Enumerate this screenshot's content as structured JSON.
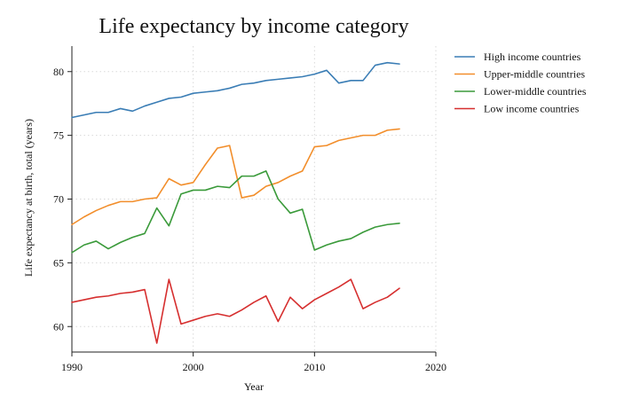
{
  "chart_data": {
    "type": "line",
    "title": "Life expectancy by income category",
    "xlabel": "Year",
    "ylabel": "Life expectancy at birth, total (years)",
    "xlim": [
      1990,
      2020
    ],
    "ylim": [
      58,
      82
    ],
    "xticks": [
      1990,
      2000,
      2010,
      2020
    ],
    "yticks": [
      60,
      65,
      70,
      75,
      80
    ],
    "grid": true,
    "legend_position": "right",
    "x": [
      1990,
      1991,
      1992,
      1993,
      1994,
      1995,
      1996,
      1997,
      1998,
      1999,
      2000,
      2001,
      2002,
      2003,
      2004,
      2005,
      2006,
      2007,
      2008,
      2009,
      2010,
      2011,
      2012,
      2013,
      2014,
      2015,
      2016,
      2017
    ],
    "series": [
      {
        "name": "High income countries",
        "color": "#3a7db5",
        "values": [
          76.4,
          76.6,
          76.8,
          76.8,
          77.1,
          76.9,
          77.3,
          77.6,
          77.9,
          78.0,
          78.3,
          78.4,
          78.5,
          78.7,
          79.0,
          79.1,
          79.3,
          79.4,
          79.5,
          79.6,
          79.8,
          80.1,
          79.1,
          79.3,
          79.3,
          80.5,
          80.7,
          80.6
        ]
      },
      {
        "name": "Upper-middle countries",
        "color": "#f28e2b",
        "values": [
          68.0,
          68.6,
          69.1,
          69.5,
          69.8,
          69.8,
          70.0,
          70.1,
          71.6,
          71.1,
          71.3,
          72.7,
          74.0,
          74.2,
          70.1,
          70.3,
          71.0,
          71.3,
          71.8,
          72.2,
          74.1,
          74.2,
          74.6,
          74.8,
          75.0,
          75.0,
          75.4,
          75.5
        ]
      },
      {
        "name": "Lower-middle countries",
        "color": "#3a9a3a",
        "values": [
          65.8,
          66.4,
          66.7,
          66.1,
          66.6,
          67.0,
          67.3,
          69.3,
          67.9,
          70.4,
          70.7,
          70.7,
          71.0,
          70.9,
          71.8,
          71.8,
          72.2,
          70.0,
          68.9,
          69.2,
          66.0,
          66.4,
          66.7,
          66.9,
          67.4,
          67.8,
          68.0,
          68.1
        ]
      },
      {
        "name": "Low income countries",
        "color": "#d62f2f",
        "values": [
          61.9,
          62.1,
          62.3,
          62.4,
          62.6,
          62.7,
          62.9,
          58.7,
          63.7,
          60.2,
          60.5,
          60.8,
          61.0,
          60.8,
          61.3,
          61.9,
          62.4,
          60.4,
          62.3,
          61.4,
          62.1,
          62.6,
          63.1,
          63.7,
          61.4,
          61.9,
          62.3,
          63.0
        ]
      }
    ]
  }
}
